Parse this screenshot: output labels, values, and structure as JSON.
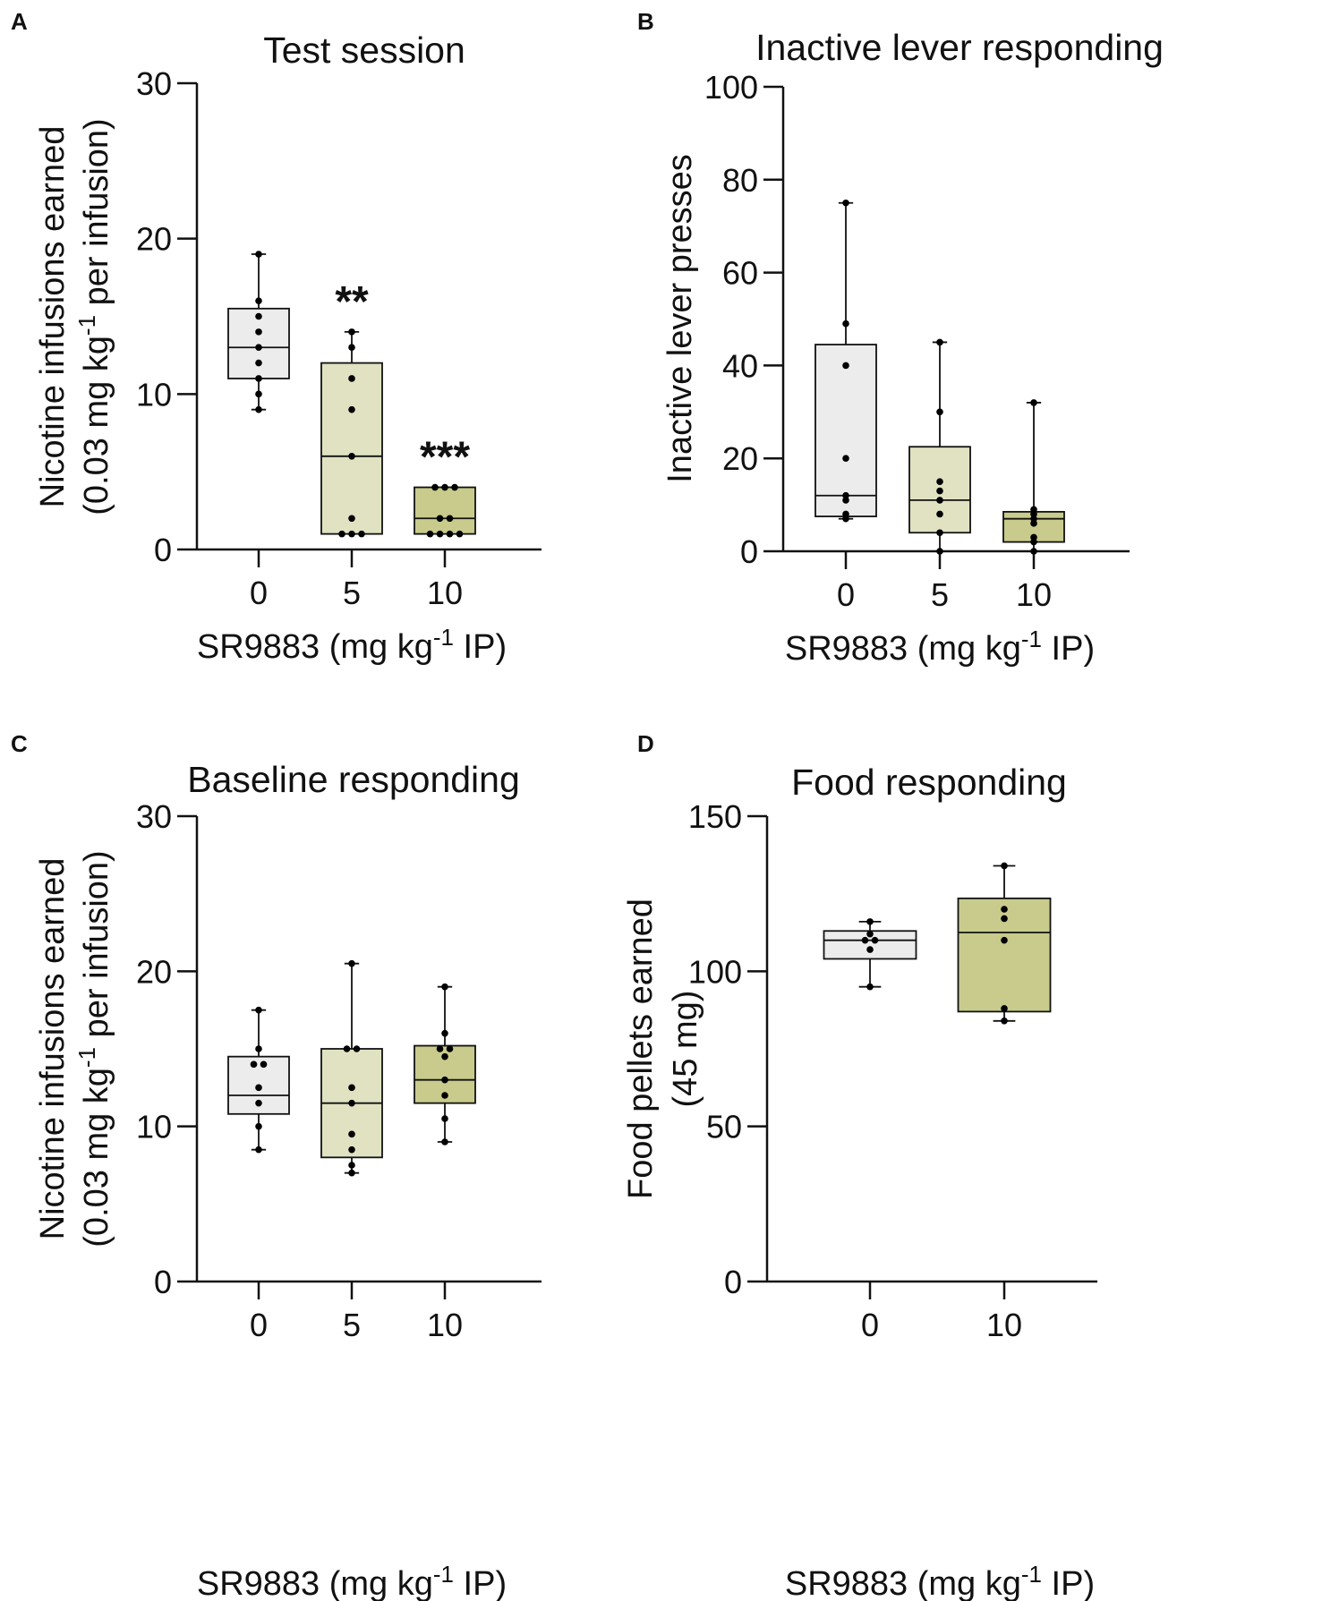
{
  "colors": {
    "group0": "#ececec",
    "group5": "#e0e2c2",
    "group10": "#c9cb8c",
    "axis": "#111111"
  },
  "chart_data": [
    {
      "panel": "A",
      "type": "box",
      "title": "Test session",
      "xlabel": {
        "main": "SR9883 (mg kg",
        "sup": "-1",
        "tail": " IP)"
      },
      "ylabel": [
        {
          "main": "Nicotine infusions earned"
        },
        {
          "main": "(0.03 mg kg",
          "sup": "-1",
          "tail": " per infusion)"
        }
      ],
      "ylim": [
        0,
        30
      ],
      "yticks": [
        "0",
        "10",
        "20",
        "30"
      ],
      "categories": [
        "0",
        "5",
        "10"
      ],
      "groups": [
        {
          "name": "0",
          "min": 9,
          "q1": 11,
          "median": 13,
          "q3": 15.5,
          "max": 19,
          "points": [
            19,
            16,
            15,
            14,
            13,
            12,
            11,
            10,
            9
          ],
          "significance": ""
        },
        {
          "name": "5",
          "min": 1,
          "q1": 1,
          "median": 6,
          "q3": 12,
          "max": 14,
          "points": [
            14,
            13,
            11,
            9,
            6,
            2,
            1,
            1,
            1
          ],
          "significance": "**"
        },
        {
          "name": "10",
          "min": 1,
          "q1": 1,
          "median": 2,
          "q3": 4,
          "max": 4,
          "points": [
            4,
            4,
            4,
            2,
            2,
            1,
            1,
            1,
            1
          ],
          "significance": "***"
        }
      ]
    },
    {
      "panel": "B",
      "type": "box",
      "title": "Inactive lever responding",
      "xlabel": {
        "main": "SR9883 (mg kg",
        "sup": "-1",
        "tail": " IP)"
      },
      "ylabel": [
        {
          "main": "Inactive lever presses"
        }
      ],
      "ylim": [
        0,
        100
      ],
      "yticks": [
        "0",
        "20",
        "40",
        "60",
        "80",
        "100"
      ],
      "categories": [
        "0",
        "5",
        "10"
      ],
      "groups": [
        {
          "name": "0",
          "min": 7,
          "q1": 7.5,
          "median": 12,
          "q3": 44.5,
          "max": 75,
          "points": [
            75,
            49,
            40,
            20,
            12,
            11,
            8,
            7
          ],
          "significance": ""
        },
        {
          "name": "5",
          "min": 0,
          "q1": 4,
          "median": 11,
          "q3": 22.5,
          "max": 45,
          "points": [
            45,
            30,
            15,
            13,
            11,
            8,
            4,
            0
          ],
          "significance": ""
        },
        {
          "name": "10",
          "min": 0,
          "q1": 2,
          "median": 7,
          "q3": 8.5,
          "max": 32,
          "points": [
            32,
            9,
            8,
            7,
            6,
            3,
            2,
            0
          ],
          "significance": ""
        }
      ]
    },
    {
      "panel": "C",
      "type": "box",
      "title": "Baseline responding",
      "xlabel": {
        "main": "SR9883 (mg kg",
        "sup": "-1",
        "tail": " IP)"
      },
      "ylabel": [
        {
          "main": "Nicotine infusions earned"
        },
        {
          "main": "(0.03 mg kg",
          "sup": "-1",
          "tail": " per infusion)"
        }
      ],
      "ylim": [
        0,
        30
      ],
      "yticks": [
        "0",
        "10",
        "20",
        "30"
      ],
      "categories": [
        "0",
        "5",
        "10"
      ],
      "groups": [
        {
          "name": "0",
          "min": 8.5,
          "q1": 10.8,
          "median": 12,
          "q3": 14.5,
          "max": 17.5,
          "points": [
            17.5,
            15,
            14,
            14,
            12.5,
            11.5,
            10,
            8.5
          ],
          "significance": ""
        },
        {
          "name": "5",
          "min": 7,
          "q1": 8,
          "median": 11.5,
          "q3": 15,
          "max": 20.5,
          "points": [
            20.5,
            15,
            15,
            12.5,
            11.5,
            9.5,
            8.5,
            7.5,
            7
          ],
          "significance": ""
        },
        {
          "name": "10",
          "min": 9,
          "q1": 11.5,
          "median": 13,
          "q3": 15.2,
          "max": 19,
          "points": [
            19,
            16,
            15,
            15,
            14.5,
            13,
            12,
            10.5,
            9
          ],
          "significance": ""
        }
      ]
    },
    {
      "panel": "D",
      "type": "box",
      "title": "Food responding",
      "xlabel": {
        "main": "SR9883 (mg kg",
        "sup": "-1",
        "tail": " IP)"
      },
      "ylabel": [
        {
          "main": "Food pellets earned"
        },
        {
          "main": "(45 mg)"
        }
      ],
      "ylim": [
        0,
        150
      ],
      "yticks": [
        "0",
        "50",
        "100",
        "150"
      ],
      "categories": [
        "0",
        "10"
      ],
      "groups": [
        {
          "name": "0",
          "min": 95,
          "q1": 104,
          "median": 110,
          "q3": 113,
          "max": 116,
          "points": [
            116,
            112,
            110,
            110,
            107,
            95
          ],
          "significance": ""
        },
        {
          "name": "10",
          "min": 84,
          "q1": 87,
          "median": 112.5,
          "q3": 123.5,
          "max": 134,
          "points": [
            134,
            120,
            117,
            110,
            88,
            84
          ],
          "significance": ""
        }
      ]
    }
  ]
}
